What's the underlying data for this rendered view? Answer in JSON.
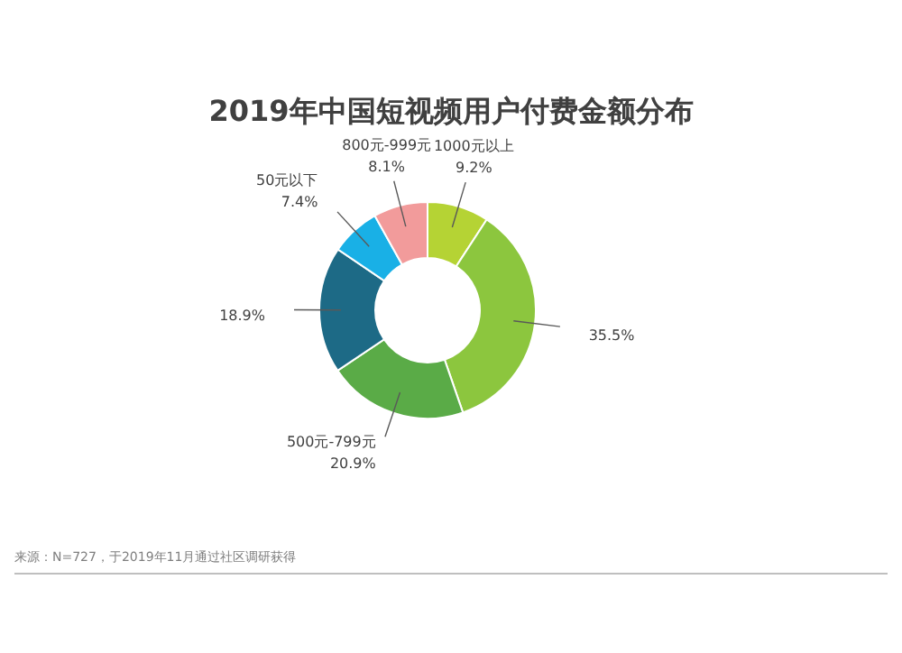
{
  "chart_data": {
    "type": "donut",
    "title": "2019年中国短视频用户付费金额分布",
    "categories": [
      "1000元以上",
      null,
      "500元-799元",
      null,
      "50元以下",
      "800元-999元"
    ],
    "values": [
      9.2,
      35.5,
      20.9,
      18.9,
      7.4,
      8.1
    ],
    "colors": [
      "#b5d334",
      "#8cc63e",
      "#5aab47",
      "#1d6a86",
      "#19b0e6",
      "#f29b9b"
    ],
    "value_labels": [
      "9.2%",
      "35.5%",
      "20.9%",
      "18.9%",
      "7.4%",
      "8.1%"
    ],
    "annotations": [
      "来源：N=727，于2019年11月通过社区调研获得"
    ]
  }
}
